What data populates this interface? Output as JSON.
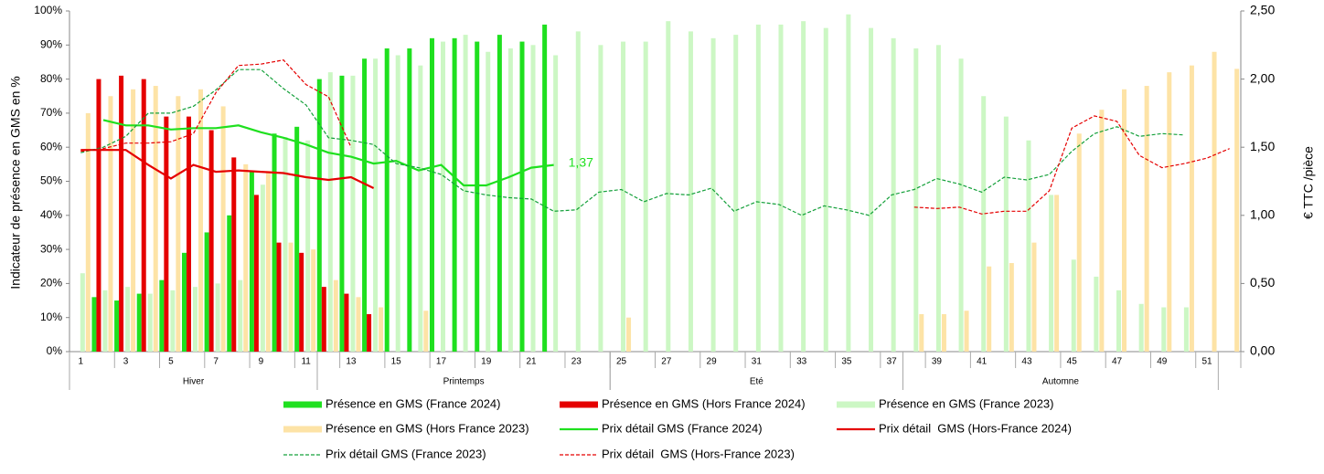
{
  "chart_data": {
    "type": "bar",
    "ylabel": "Indicateur de présence en GMS en %",
    "y2label": "€ TTC /pièce",
    "categories": [
      1,
      null,
      3,
      null,
      5,
      null,
      7,
      null,
      9,
      null,
      11,
      null,
      13,
      null,
      15,
      null,
      17,
      null,
      19,
      null,
      21,
      null,
      23,
      null,
      25,
      null,
      27,
      null,
      29,
      null,
      31,
      null,
      33,
      null,
      35,
      null,
      37,
      null,
      39,
      null,
      41,
      null,
      43,
      null,
      45,
      null,
      47,
      null,
      49,
      null,
      51,
      null
    ],
    "groups": [
      {
        "name": "Hiver",
        "weeks": [
          1,
          11
        ]
      },
      {
        "name": "Printemps",
        "weeks": [
          12,
          24
        ]
      },
      {
        "name": "Eté",
        "weeks": [
          25,
          37
        ]
      },
      {
        "name": "Automne",
        "weeks": [
          38,
          51
        ]
      }
    ],
    "ylim": [
      0,
      100
    ],
    "yticks": [
      {
        "value": 0,
        "label": "0%"
      },
      {
        "value": 10,
        "label": "10%"
      },
      {
        "value": 20,
        "label": "20%"
      },
      {
        "value": 30,
        "label": "30%"
      },
      {
        "value": 40,
        "label": "40%"
      },
      {
        "value": 50,
        "label": "50%"
      },
      {
        "value": 60,
        "label": "60%"
      },
      {
        "value": 70,
        "label": "70%"
      },
      {
        "value": 80,
        "label": "80%"
      },
      {
        "value": 90,
        "label": "90%"
      },
      {
        "value": 100,
        "label": "100%"
      }
    ],
    "y2lim": [
      0,
      2.5
    ],
    "y2ticks": [
      {
        "value": 0,
        "label": "0,00"
      },
      {
        "value": 0.5,
        "label": "0,50"
      },
      {
        "value": 1,
        "label": "1,00"
      },
      {
        "value": 1.5,
        "label": "1,50"
      },
      {
        "value": 2,
        "label": "2,00"
      },
      {
        "value": 2.5,
        "label": "2,50"
      }
    ],
    "series": [
      {
        "name": "Présence en GMS (France 2024)",
        "kind": "bar",
        "color": "#1fe01f",
        "values": [
          null,
          16,
          15,
          17,
          21,
          29,
          35,
          40,
          53,
          64,
          66,
          80,
          81,
          86,
          89,
          89,
          92,
          92,
          91,
          93,
          91,
          96,
          null,
          null,
          null,
          null,
          null,
          null,
          null,
          null,
          null,
          null,
          null,
          null,
          null,
          null,
          null,
          null,
          null,
          null,
          null,
          null,
          null,
          null,
          null,
          null,
          null,
          null,
          null,
          null,
          null,
          null
        ]
      },
      {
        "name": "Présence en GMS (Hors France 2024)",
        "kind": "bar",
        "color": "#e50000",
        "values": [
          null,
          80,
          81,
          80,
          69,
          69,
          65,
          57,
          46,
          32,
          29,
          19,
          17,
          11,
          null,
          null,
          null,
          null,
          null,
          null,
          null,
          null,
          null,
          null,
          null,
          null,
          null,
          null,
          null,
          null,
          null,
          null,
          null,
          null,
          null,
          null,
          null,
          null,
          null,
          null,
          null,
          null,
          null,
          null,
          null,
          null,
          null,
          null,
          null,
          null,
          null,
          null
        ]
      },
      {
        "name": "Présence en GMS (France 2023)",
        "kind": "bar",
        "color": "#ccf7c4",
        "values": [
          23,
          18,
          19,
          17,
          18,
          19,
          20,
          21,
          49,
          63,
          62,
          82,
          81,
          86,
          87,
          84,
          91,
          93,
          88,
          89,
          90,
          87,
          94,
          90,
          91,
          91,
          97,
          94,
          92,
          93,
          96,
          96,
          97,
          95,
          99,
          95,
          92,
          89,
          90,
          86,
          75,
          69,
          62,
          46,
          27,
          22,
          18,
          14,
          13,
          13,
          null,
          null
        ]
      },
      {
        "name": "Présence en GMS (Hors France 2023)",
        "kind": "bar",
        "color": "#fde3a6",
        "values": [
          70,
          75,
          77,
          78,
          75,
          77,
          72,
          55,
          53,
          32,
          30,
          21,
          16,
          13,
          null,
          12,
          null,
          null,
          null,
          null,
          null,
          null,
          null,
          null,
          10,
          null,
          null,
          null,
          null,
          null,
          null,
          null,
          null,
          null,
          null,
          null,
          null,
          11,
          11,
          12,
          25,
          26,
          32,
          46,
          64,
          71,
          77,
          78,
          82,
          84,
          88,
          83
        ]
      },
      {
        "name": "Prix détail GMS (France 2024)",
        "kind": "line",
        "axis": "y2",
        "color": "#1fe01f",
        "dash": false,
        "values": [
          null,
          1.7,
          1.66,
          1.66,
          1.63,
          1.64,
          1.64,
          1.66,
          1.61,
          1.57,
          1.52,
          1.46,
          1.43,
          1.38,
          1.4,
          1.33,
          1.37,
          1.22,
          1.22,
          1.28,
          1.35,
          1.37,
          null,
          null,
          null,
          null,
          null,
          null,
          null,
          null,
          null,
          null,
          null,
          null,
          null,
          null,
          null,
          null,
          null,
          null,
          null,
          null,
          null,
          null,
          null,
          null,
          null,
          null,
          null,
          null,
          null,
          null
        ]
      },
      {
        "name": "Prix détail  GMS (Hors-France 2024)",
        "kind": "line",
        "axis": "y2",
        "color": "#e50000",
        "dash": false,
        "values": [
          1.48,
          1.48,
          1.48,
          1.37,
          1.27,
          1.37,
          1.32,
          1.33,
          1.32,
          1.31,
          1.28,
          1.26,
          1.28,
          1.2,
          null,
          null,
          null,
          null,
          null,
          null,
          null,
          null,
          null,
          null,
          null,
          null,
          null,
          null,
          null,
          null,
          null,
          null,
          null,
          null,
          null,
          null,
          null,
          null,
          null,
          null,
          null,
          null,
          null,
          null,
          null,
          null,
          null,
          null,
          null,
          null,
          null,
          null
        ]
      },
      {
        "name": "Prix détail GMS (France 2023)",
        "kind": "line",
        "axis": "y2",
        "color": "#14a03a",
        "dash": true,
        "values": [
          1.46,
          1.5,
          1.58,
          1.75,
          1.75,
          1.8,
          1.92,
          2.07,
          2.07,
          1.93,
          1.81,
          1.57,
          1.55,
          1.52,
          1.38,
          1.35,
          1.3,
          1.18,
          1.15,
          1.13,
          1.12,
          1.03,
          1.04,
          1.17,
          1.19,
          1.1,
          1.16,
          1.15,
          1.2,
          1.03,
          1.1,
          1.08,
          1.0,
          1.07,
          1.04,
          1.0,
          1.15,
          1.19,
          1.27,
          1.23,
          1.17,
          1.28,
          1.26,
          1.3,
          1.47,
          1.6,
          1.65,
          1.58,
          1.6,
          1.59,
          null,
          null
        ]
      },
      {
        "name": "Prix détail  GMS (Hors-France 2023)",
        "kind": "line",
        "axis": "y2",
        "color": "#e50000",
        "dash": true,
        "values": [
          1.47,
          1.49,
          1.53,
          1.53,
          1.54,
          1.6,
          1.9,
          2.1,
          2.11,
          2.14,
          1.96,
          1.87,
          1.5,
          null,
          null,
          null,
          null,
          null,
          null,
          null,
          null,
          null,
          null,
          null,
          null,
          null,
          null,
          null,
          null,
          null,
          null,
          null,
          null,
          null,
          null,
          null,
          null,
          1.06,
          1.05,
          1.06,
          1.01,
          1.03,
          1.03,
          1.18,
          1.64,
          1.73,
          1.69,
          1.44,
          1.35,
          1.38,
          1.42,
          1.49
        ]
      }
    ],
    "annotations": [
      {
        "text": "1,37",
        "series": 4
      }
    ]
  }
}
